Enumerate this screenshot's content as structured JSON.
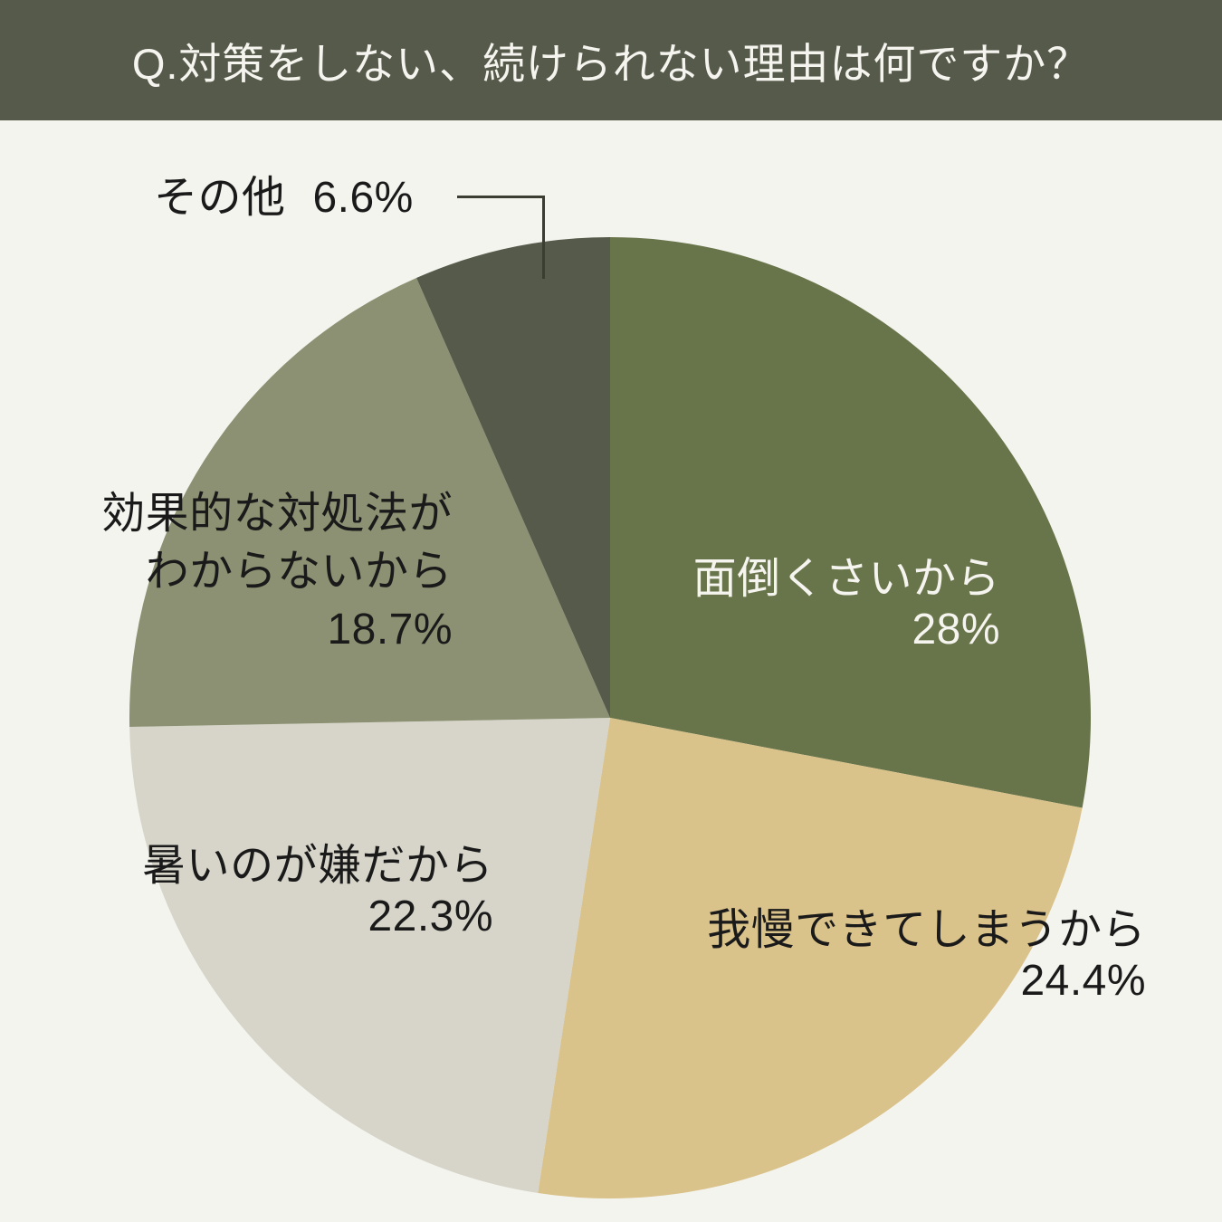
{
  "header": {
    "title": "Q.対策をしない、続けられない理由は何ですか？",
    "bg_color": "#555a4a",
    "text_color": "#f5f4ee"
  },
  "background_color": "#f4f4ef",
  "chart_data": {
    "type": "pie",
    "title": "Q.対策をしない、続けられない理由は何ですか？",
    "start_angle_deg": 0,
    "direction": "clockwise",
    "legend_position": "none",
    "slices": [
      {
        "label": "面倒くさいから",
        "value": 28,
        "display_value": "28%",
        "color": "#68744a",
        "label_color": "#f5f4ee"
      },
      {
        "label": "我慢できてしまうから",
        "value": 24.4,
        "display_value": "24.4%",
        "color": "#dac28b",
        "label_color": "#1a1a1a"
      },
      {
        "label": "暑いのが嫌だから",
        "value": 22.3,
        "display_value": "22.3%",
        "color": "#d7d5c9",
        "label_color": "#1a1a1a"
      },
      {
        "label": "効果的な対処法がわからないから",
        "label_lines": [
          "効果的な対処法が",
          "わからないから"
        ],
        "value": 18.7,
        "display_value": "18.7%",
        "color": "#8b9172",
        "label_color": "#1a1a1a"
      },
      {
        "label": "その他",
        "value": 6.6,
        "display_value": "6.6%",
        "color": "#555a4a",
        "label_color": "#1a1a1a",
        "callout_line": true
      }
    ]
  }
}
